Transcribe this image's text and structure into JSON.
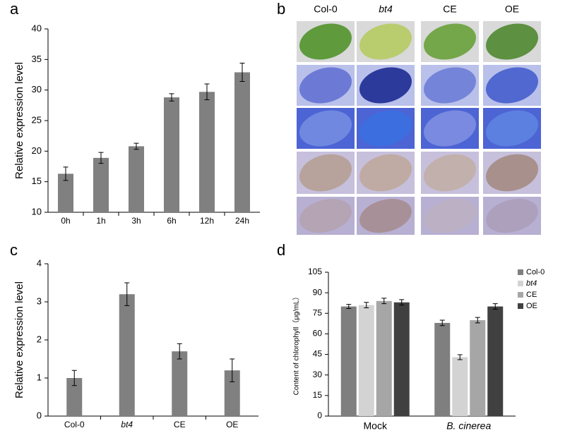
{
  "chart_data": [
    {
      "panel": "a",
      "type": "bar",
      "ylabel": "Relative expression level",
      "categories": [
        "0h",
        "1h",
        "3h",
        "6h",
        "12h",
        "24h"
      ],
      "values": [
        16.3,
        18.9,
        20.8,
        28.8,
        29.7,
        32.9
      ],
      "errors": [
        1.1,
        0.9,
        0.5,
        0.6,
        1.3,
        1.5
      ],
      "color": "#808080",
      "ylim": [
        10,
        40
      ],
      "yticks": [
        10,
        15,
        20,
        25,
        30,
        35,
        40
      ]
    },
    {
      "panel": "c",
      "type": "bar",
      "ylabel": "Relative expression level",
      "categories": [
        "Col-0",
        "bt4",
        "CE",
        "OE"
      ],
      "values": [
        1.0,
        3.2,
        1.7,
        1.2
      ],
      "errors": [
        0.2,
        0.3,
        0.2,
        0.3
      ],
      "color": "#808080",
      "ylim": [
        0,
        4
      ],
      "yticks": [
        0,
        1,
        2,
        3,
        4
      ]
    },
    {
      "panel": "d",
      "type": "grouped_bar",
      "ylabel": "Content of chlorophyll（μg/mL）",
      "categories": [
        "Mock",
        "B. cinerea"
      ],
      "series": [
        {
          "name": "Col-0",
          "color": "#7f7f7f",
          "values": [
            80,
            68
          ],
          "errors": [
            1.5,
            2
          ]
        },
        {
          "name": "bt4",
          "color": "#d3d3d3",
          "values": [
            81,
            43
          ],
          "errors": [
            2,
            1.8
          ]
        },
        {
          "name": "CE",
          "color": "#a6a6a6",
          "values": [
            84,
            70
          ],
          "errors": [
            2,
            2
          ]
        },
        {
          "name": "OE",
          "color": "#404040",
          "values": [
            83,
            80
          ],
          "errors": [
            2,
            2
          ]
        }
      ],
      "legend": "upper right",
      "ylim": [
        0,
        105
      ],
      "yticks": [
        0,
        15,
        30,
        45,
        60,
        75,
        90,
        105
      ]
    }
  ],
  "image_panel": {
    "panel": "b",
    "columns": [
      "Col-0",
      "bt4",
      "CE",
      "OE"
    ]
  }
}
